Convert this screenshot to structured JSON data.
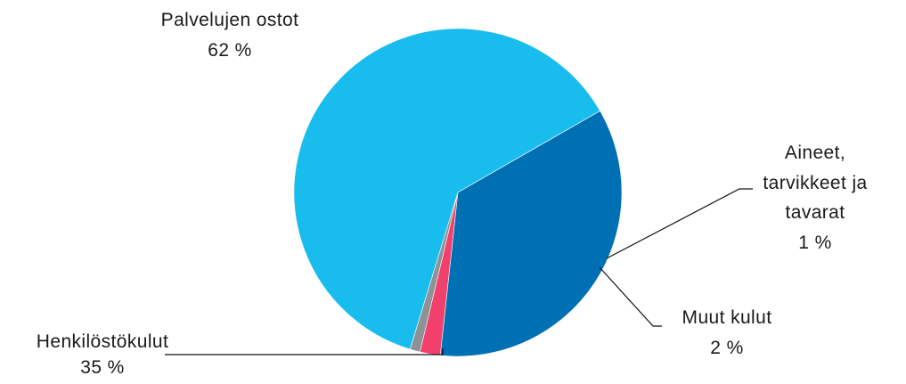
{
  "chart_data": {
    "type": "pie",
    "slices": [
      {
        "label": "Palvelujen ostot",
        "value_label": "62 %",
        "value": 62,
        "color": "#18BDEE"
      },
      {
        "label": "Aineet, tarvikkeet ja tavarat",
        "label_lines": [
          "Aineet,",
          "tarvikkeet ja",
          "tavarat"
        ],
        "value_label": "1 %",
        "value": 1,
        "color": "#8C9396"
      },
      {
        "label": "Muut kulut",
        "value_label": "2 %",
        "value": 2,
        "color": "#F0406B"
      },
      {
        "label": "Henkilöstökulut",
        "value_label": "35 %",
        "value": 35,
        "color": "#0070B4"
      }
    ],
    "legend": "none",
    "data_labels": "outside with leader lines"
  }
}
